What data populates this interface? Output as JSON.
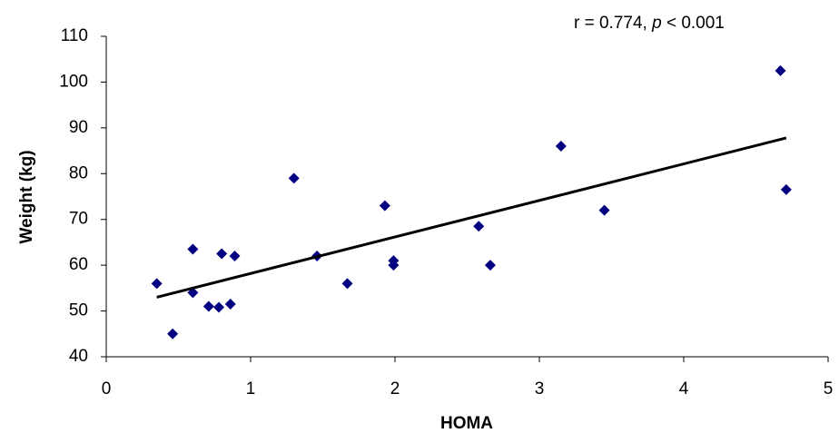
{
  "chart_data": {
    "type": "scatter",
    "x_label": "HOMA",
    "y_label": "Weight (kg)",
    "annotation": [
      "r = 0.774, ",
      "p",
      " < 0.001"
    ],
    "xlim": [
      0,
      5
    ],
    "xticks": [
      0,
      1,
      2,
      3,
      4,
      5
    ],
    "ylim": [
      40,
      110
    ],
    "yticks": [
      40,
      50,
      60,
      70,
      80,
      90,
      100,
      110
    ],
    "series": [
      {
        "color": "#000080",
        "x": [
          0.35,
          0.46,
          0.6,
          0.6,
          0.71,
          0.78,
          0.8,
          0.86,
          0.89,
          1.3,
          1.46,
          1.67,
          1.93,
          1.99,
          1.99,
          2.58,
          2.66,
          3.15,
          3.45,
          4.67,
          4.71
        ],
        "values": [
          56,
          45,
          54,
          63.5,
          51,
          50.8,
          62.5,
          51.5,
          62,
          79,
          62,
          56,
          73,
          61,
          60,
          68.5,
          60,
          86,
          72,
          102.5,
          76.5
        ]
      }
    ],
    "trendline": {
      "color": "#000000",
      "x": [
        0.35,
        4.71
      ],
      "values": [
        53,
        87.8
      ]
    }
  }
}
